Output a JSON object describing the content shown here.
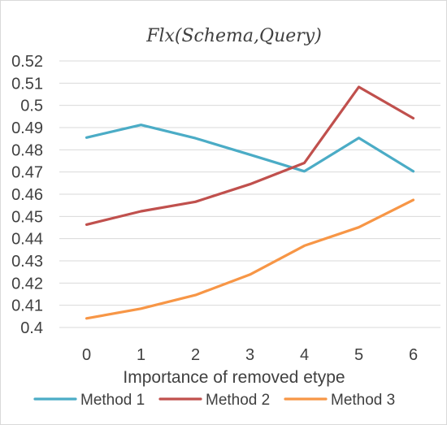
{
  "chart_data": {
    "type": "line",
    "title": "Flx(Schema,Query)",
    "xlabel": "Importance of removed etype",
    "ylabel": "",
    "x": [
      0,
      1,
      2,
      3,
      4,
      5,
      6
    ],
    "ylim": [
      0.4,
      0.52
    ],
    "yticks": [
      "0.4",
      "0.41",
      "0.42",
      "0.43",
      "0.44",
      "0.45",
      "0.46",
      "0.47",
      "0.48",
      "0.49",
      "0.5",
      "0.51",
      "0.52"
    ],
    "grid": true,
    "legend_position": "bottom",
    "series": [
      {
        "name": "Method 1",
        "color": "#4BACC6",
        "values": [
          0.4855,
          0.4912,
          0.4852,
          0.4778,
          0.4703,
          0.4853,
          0.4703
        ]
      },
      {
        "name": "Method 2",
        "color": "#C0504D",
        "values": [
          0.4463,
          0.4523,
          0.4566,
          0.4645,
          0.4741,
          0.5083,
          0.4942
        ]
      },
      {
        "name": "Method 3",
        "color": "#F79646",
        "values": [
          0.4041,
          0.4085,
          0.4146,
          0.4238,
          0.4368,
          0.4451,
          0.4574
        ]
      }
    ]
  }
}
